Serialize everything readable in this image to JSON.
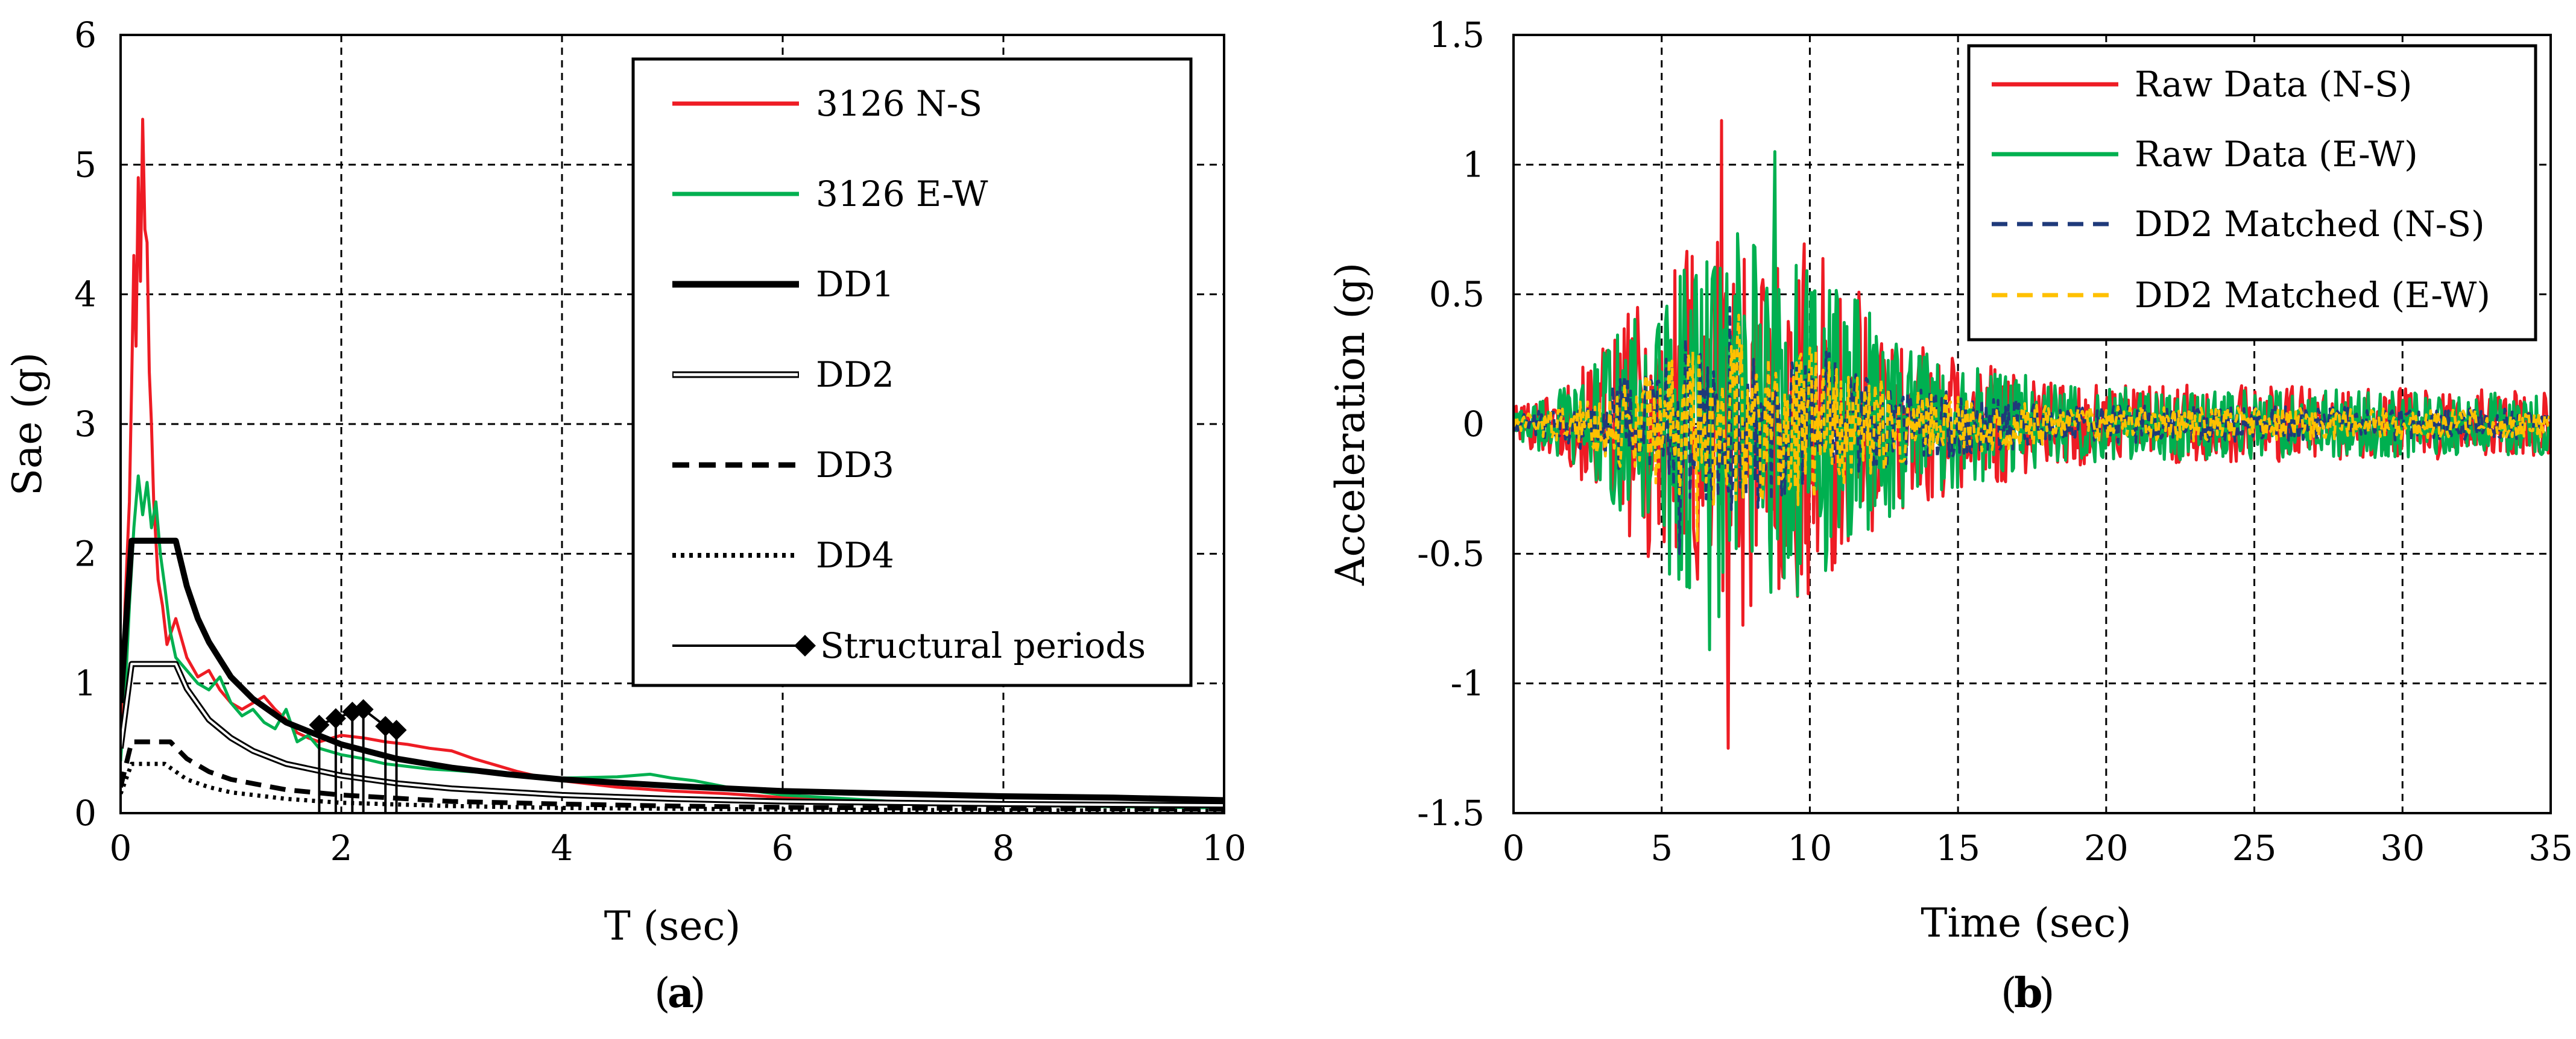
{
  "chart_data": [
    {
      "type": "line",
      "caption_letter": "a",
      "xlabel": "T (sec)",
      "ylabel": "Sae (g)",
      "xlim": [
        0,
        10
      ],
      "ylim": [
        0,
        6
      ],
      "xticks": [
        "0",
        "2",
        "4",
        "6",
        "8",
        "10"
      ],
      "yticks": [
        "0",
        "1",
        "2",
        "3",
        "4",
        "5",
        "6"
      ],
      "grid": true,
      "legend_position": "top-right",
      "series": [
        {
          "name": "3126 N-S",
          "color": "#ee1c24",
          "style": "solid",
          "x": [
            0,
            0.04,
            0.08,
            0.1,
            0.12,
            0.14,
            0.16,
            0.18,
            0.2,
            0.22,
            0.24,
            0.26,
            0.28,
            0.3,
            0.34,
            0.38,
            0.42,
            0.5,
            0.6,
            0.7,
            0.8,
            0.9,
            1.0,
            1.1,
            1.2,
            1.3,
            1.4,
            1.5,
            1.6,
            1.7,
            1.8,
            2.0,
            2.2,
            2.4,
            2.6,
            2.8,
            3.0,
            3.2,
            3.4,
            3.6,
            3.8,
            4.0,
            4.2,
            4.5,
            5.0,
            5.5,
            6.0,
            7.0,
            8.0,
            9.0,
            10.0
          ],
          "y": [
            0.5,
            1.6,
            2.4,
            3.3,
            4.3,
            3.6,
            4.9,
            4.1,
            5.35,
            4.5,
            4.4,
            3.4,
            3.0,
            2.4,
            1.8,
            1.6,
            1.3,
            1.5,
            1.2,
            1.05,
            1.1,
            0.95,
            0.85,
            0.8,
            0.85,
            0.9,
            0.8,
            0.72,
            0.62,
            0.58,
            0.55,
            0.6,
            0.58,
            0.55,
            0.53,
            0.5,
            0.48,
            0.42,
            0.37,
            0.32,
            0.28,
            0.25,
            0.23,
            0.2,
            0.17,
            0.15,
            0.12,
            0.08,
            0.06,
            0.05,
            0.04
          ]
        },
        {
          "name": "3126 E-W",
          "color": "#00b050",
          "style": "solid",
          "x": [
            0,
            0.04,
            0.08,
            0.12,
            0.16,
            0.2,
            0.24,
            0.28,
            0.32,
            0.36,
            0.4,
            0.45,
            0.5,
            0.6,
            0.7,
            0.8,
            0.9,
            1.0,
            1.1,
            1.2,
            1.3,
            1.4,
            1.5,
            1.6,
            1.7,
            1.8,
            2.0,
            2.2,
            2.4,
            2.6,
            2.8,
            3.0,
            3.5,
            4.0,
            4.5,
            4.8,
            5.0,
            5.2,
            5.5,
            6.0,
            7.0,
            8.0,
            9.0,
            10.0
          ],
          "y": [
            0.4,
            0.9,
            1.6,
            2.2,
            2.6,
            2.3,
            2.55,
            2.2,
            2.4,
            2.0,
            1.75,
            1.4,
            1.2,
            1.1,
            1.0,
            0.95,
            1.05,
            0.85,
            0.75,
            0.8,
            0.7,
            0.65,
            0.8,
            0.55,
            0.6,
            0.5,
            0.45,
            0.42,
            0.38,
            0.36,
            0.34,
            0.33,
            0.3,
            0.27,
            0.28,
            0.3,
            0.27,
            0.25,
            0.2,
            0.14,
            0.09,
            0.06,
            0.05,
            0.04
          ]
        },
        {
          "name": "DD1",
          "color": "#000000",
          "style": "bold",
          "x": [
            0,
            0.1,
            0.5,
            0.6,
            0.7,
            0.8,
            1.0,
            1.2,
            1.5,
            2.0,
            2.5,
            3.0,
            3.5,
            4.0,
            5.0,
            6.0,
            7.0,
            8.0,
            9.0,
            10.0
          ],
          "y": [
            0.85,
            2.1,
            2.1,
            1.75,
            1.5,
            1.32,
            1.05,
            0.88,
            0.7,
            0.53,
            0.42,
            0.35,
            0.3,
            0.26,
            0.21,
            0.17,
            0.15,
            0.13,
            0.12,
            0.1
          ]
        },
        {
          "name": "DD2",
          "color": "#000000",
          "style": "double",
          "x": [
            0,
            0.1,
            0.5,
            0.6,
            0.8,
            1.0,
            1.2,
            1.5,
            2.0,
            2.5,
            3.0,
            4.0,
            5.0,
            6.0,
            7.0,
            8.0,
            9.0,
            10.0
          ],
          "y": [
            0.5,
            1.15,
            1.15,
            0.96,
            0.72,
            0.58,
            0.48,
            0.38,
            0.29,
            0.23,
            0.19,
            0.14,
            0.11,
            0.09,
            0.08,
            0.07,
            0.065,
            0.06
          ]
        },
        {
          "name": "DD3",
          "color": "#000000",
          "style": "dashed",
          "x": [
            0,
            0.1,
            0.45,
            0.6,
            0.8,
            1.0,
            1.5,
            2.0,
            3.0,
            4.0,
            5.0,
            6.0,
            8.0,
            10.0
          ],
          "y": [
            0.2,
            0.55,
            0.55,
            0.42,
            0.32,
            0.26,
            0.18,
            0.14,
            0.09,
            0.07,
            0.055,
            0.045,
            0.035,
            0.03
          ]
        },
        {
          "name": "DD4",
          "color": "#000000",
          "style": "dotted",
          "x": [
            0,
            0.1,
            0.4,
            0.6,
            0.8,
            1.0,
            1.5,
            2.0,
            3.0,
            4.0,
            6.0,
            8.0,
            10.0
          ],
          "y": [
            0.15,
            0.38,
            0.38,
            0.26,
            0.2,
            0.16,
            0.11,
            0.08,
            0.055,
            0.04,
            0.028,
            0.022,
            0.018
          ]
        }
      ],
      "structural_periods": {
        "name": "Structural periods",
        "x": [
          1.8,
          1.95,
          2.1,
          2.2,
          2.4,
          2.5
        ],
        "y": [
          0.68,
          0.73,
          0.78,
          0.8,
          0.67,
          0.64
        ]
      }
    },
    {
      "type": "line",
      "caption_letter": "b",
      "xlabel": "Time (sec)",
      "ylabel": "Acceleration (g)",
      "xlim": [
        0,
        35
      ],
      "ylim": [
        -1.5,
        1.5
      ],
      "xticks": [
        "0",
        "5",
        "10",
        "15",
        "20",
        "25",
        "30",
        "35"
      ],
      "yticks": [
        "-1.5",
        "-1",
        "-0.5",
        "0",
        "0.5",
        "1",
        "1.5"
      ],
      "grid": true,
      "legend_position": "top-right",
      "series": [
        {
          "name": "Raw Data (N-S)",
          "color": "#ee1c24",
          "style": "solid",
          "peak": 1.17,
          "trough": -1.25
        },
        {
          "name": "Raw Data (E-W)",
          "color": "#00b050",
          "style": "solid",
          "peak": 1.05,
          "trough": -0.87
        },
        {
          "name": "DD2 Matched (N-S)",
          "color": "#1f3a7a",
          "style": "dashed",
          "peak": 0.45,
          "trough": -0.5
        },
        {
          "name": "DD2 Matched (E-W)",
          "color": "#ffc000",
          "style": "dashed",
          "peak": 0.42,
          "trough": -0.45
        }
      ]
    }
  ]
}
